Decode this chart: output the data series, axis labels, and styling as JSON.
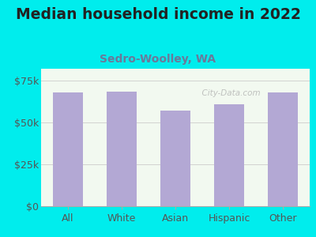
{
  "title": "Median household income in 2022",
  "subtitle": "Sedro-Woolley, WA",
  "categories": [
    "All",
    "White",
    "Asian",
    "Hispanic",
    "Other"
  ],
  "values": [
    68000,
    68500,
    57000,
    61000,
    68000
  ],
  "bar_color": "#b3a8d4",
  "background_outer": "#00eded",
  "background_inner": "#f2f9f0",
  "title_color": "#222222",
  "subtitle_color": "#6a7a9a",
  "axis_label_color": "#555555",
  "ylim": [
    0,
    82000
  ],
  "yticks": [
    0,
    25000,
    50000,
    75000
  ],
  "title_fontsize": 13.5,
  "subtitle_fontsize": 10,
  "tick_fontsize": 9,
  "watermark": "  City-Data.com"
}
